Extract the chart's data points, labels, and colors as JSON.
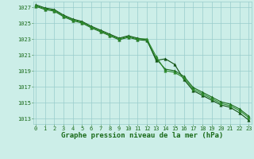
{
  "title": "Graphe pression niveau de la mer (hPa)",
  "bg_color": "#cceee8",
  "grid_color": "#99cccc",
  "line_color1": "#1a6b1a",
  "line_color2": "#2d8b2d",
  "line_color3": "#0f5010",
  "xlim": [
    -0.3,
    23.3
  ],
  "ylim": [
    1012.3,
    1027.7
  ],
  "yticks": [
    1013,
    1015,
    1017,
    1019,
    1021,
    1023,
    1025,
    1027
  ],
  "xticks": [
    0,
    1,
    2,
    3,
    4,
    5,
    6,
    7,
    8,
    9,
    10,
    11,
    12,
    13,
    14,
    15,
    16,
    17,
    18,
    19,
    20,
    21,
    22,
    23
  ],
  "series1": [
    1027.1,
    1026.7,
    1026.5,
    1025.8,
    1025.3,
    1025.0,
    1024.4,
    1023.9,
    1023.4,
    1022.9,
    1023.2,
    1022.9,
    1022.8,
    1020.5,
    1019.2,
    1019.0,
    1018.3,
    1016.9,
    1016.3,
    1015.7,
    1015.1,
    1014.8,
    1014.2,
    1013.3
  ],
  "series2": [
    1027.2,
    1026.8,
    1026.6,
    1025.9,
    1025.4,
    1025.1,
    1024.5,
    1024.0,
    1023.5,
    1023.0,
    1023.3,
    1023.0,
    1023.0,
    1020.8,
    1019.0,
    1018.8,
    1018.1,
    1016.7,
    1016.1,
    1015.5,
    1014.9,
    1014.6,
    1014.0,
    1013.1
  ],
  "series3": [
    1027.3,
    1026.9,
    1026.7,
    1026.0,
    1025.5,
    1025.2,
    1024.6,
    1024.1,
    1023.6,
    1023.1,
    1023.4,
    1023.1,
    1022.9,
    1020.3,
    1020.5,
    1019.8,
    1017.9,
    1016.5,
    1015.9,
    1015.3,
    1014.7,
    1014.4,
    1013.7,
    1012.8
  ],
  "marker": "^",
  "markersize": 2.5,
  "linewidth": 0.8,
  "title_fontsize": 6.5,
  "tick_fontsize": 5.0,
  "title_color": "#1a6b1a"
}
